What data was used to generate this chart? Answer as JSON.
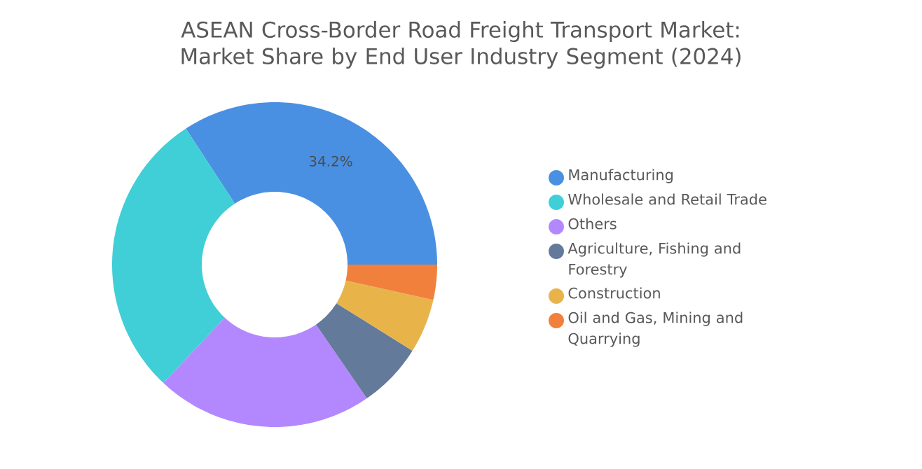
{
  "chart_data": {
    "type": "donut",
    "title": "ASEAN Cross-Border Road Freight Transport Market: Market Share by End User Industry Segment (2024)",
    "categories": [
      "Manufacturing",
      "Wholesale and Retail Trade",
      "Others",
      "Agriculture, Fishing and Forestry",
      "Construction",
      "Oil and Gas, Mining and Quarrying"
    ],
    "values": [
      34.2,
      28.8,
      21.6,
      6.5,
      5.4,
      3.5
    ],
    "colors": [
      "#4a90e2",
      "#40cfd6",
      "#b388ff",
      "#647a9a",
      "#e8b44a",
      "#f0803c"
    ],
    "value_labels": [
      "34.2%",
      null,
      null,
      null,
      null,
      null
    ],
    "legend": "right"
  }
}
